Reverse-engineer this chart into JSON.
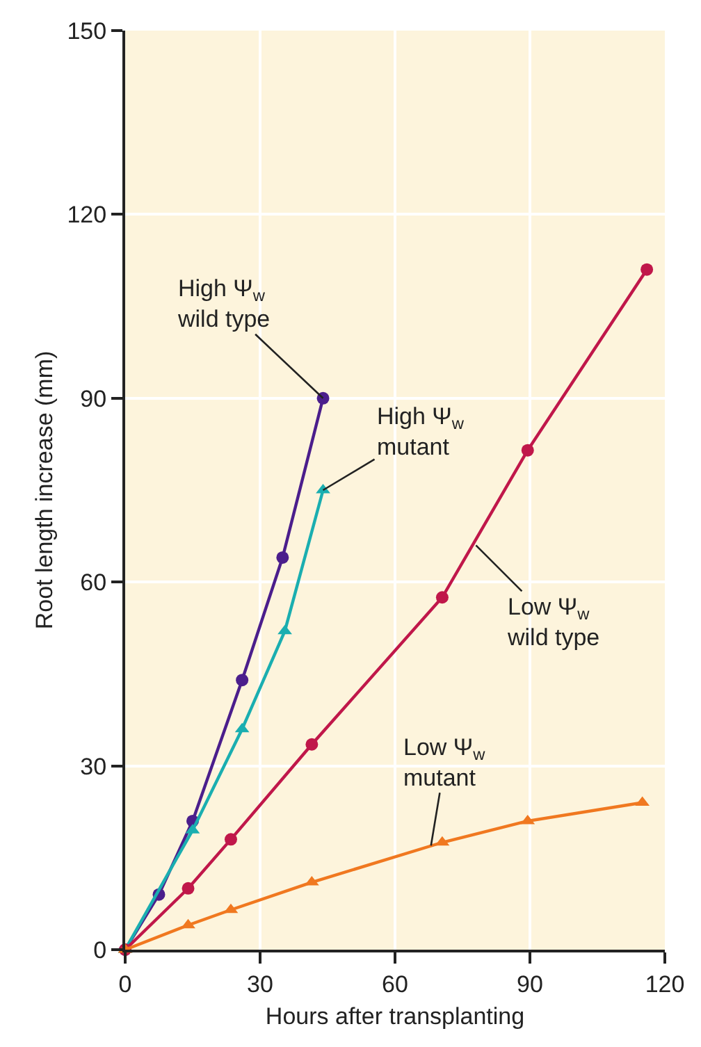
{
  "chart_data": {
    "type": "line",
    "xlabel": "Hours after transplanting",
    "ylabel": "Root length increase (mm)",
    "xlim": [
      0,
      120
    ],
    "xticks": [
      0,
      30,
      60,
      90,
      120
    ],
    "ylim": [
      0,
      150
    ],
    "yticks": [
      0,
      30,
      60,
      90,
      120,
      150
    ],
    "grid": true,
    "series": [
      {
        "color": "#4b1e8c",
        "marker": "circle",
        "x": [
          0,
          7.5,
          15,
          26,
          35,
          44
        ],
        "values": [
          0,
          9,
          21,
          44,
          64,
          90
        ]
      },
      {
        "color": "#1aaeb0",
        "marker": "triangle",
        "x": [
          0,
          15,
          26,
          35.5,
          44
        ],
        "values": [
          0,
          19.5,
          36,
          52,
          75
        ]
      },
      {
        "color": "#c0174a",
        "marker": "circle",
        "x": [
          0,
          14,
          23.5,
          41.5,
          70.5,
          89.5,
          116
        ],
        "values": [
          0,
          10,
          18,
          33.5,
          57.5,
          81.5,
          111
        ]
      },
      {
        "color": "#f07820",
        "marker": "triangle",
        "x": [
          0,
          14,
          23.5,
          41.5,
          70.5,
          89.5,
          115
        ],
        "values": [
          0,
          4,
          6.5,
          11,
          17.5,
          21,
          24
        ]
      }
    ],
    "annotations": [
      {
        "text": "High Ψ$_{w}$\nwild type",
        "x": 44,
        "y": 90
      },
      {
        "text": "High Ψ$_{w}$\nmutant",
        "x": 44,
        "y": 75
      },
      {
        "text": "Low Ψ$_{w}$\nwild type",
        "x": 78,
        "y": 66
      },
      {
        "text": "Low Ψ$_{w}$\nmutant",
        "x": 68,
        "y": 17
      }
    ]
  }
}
